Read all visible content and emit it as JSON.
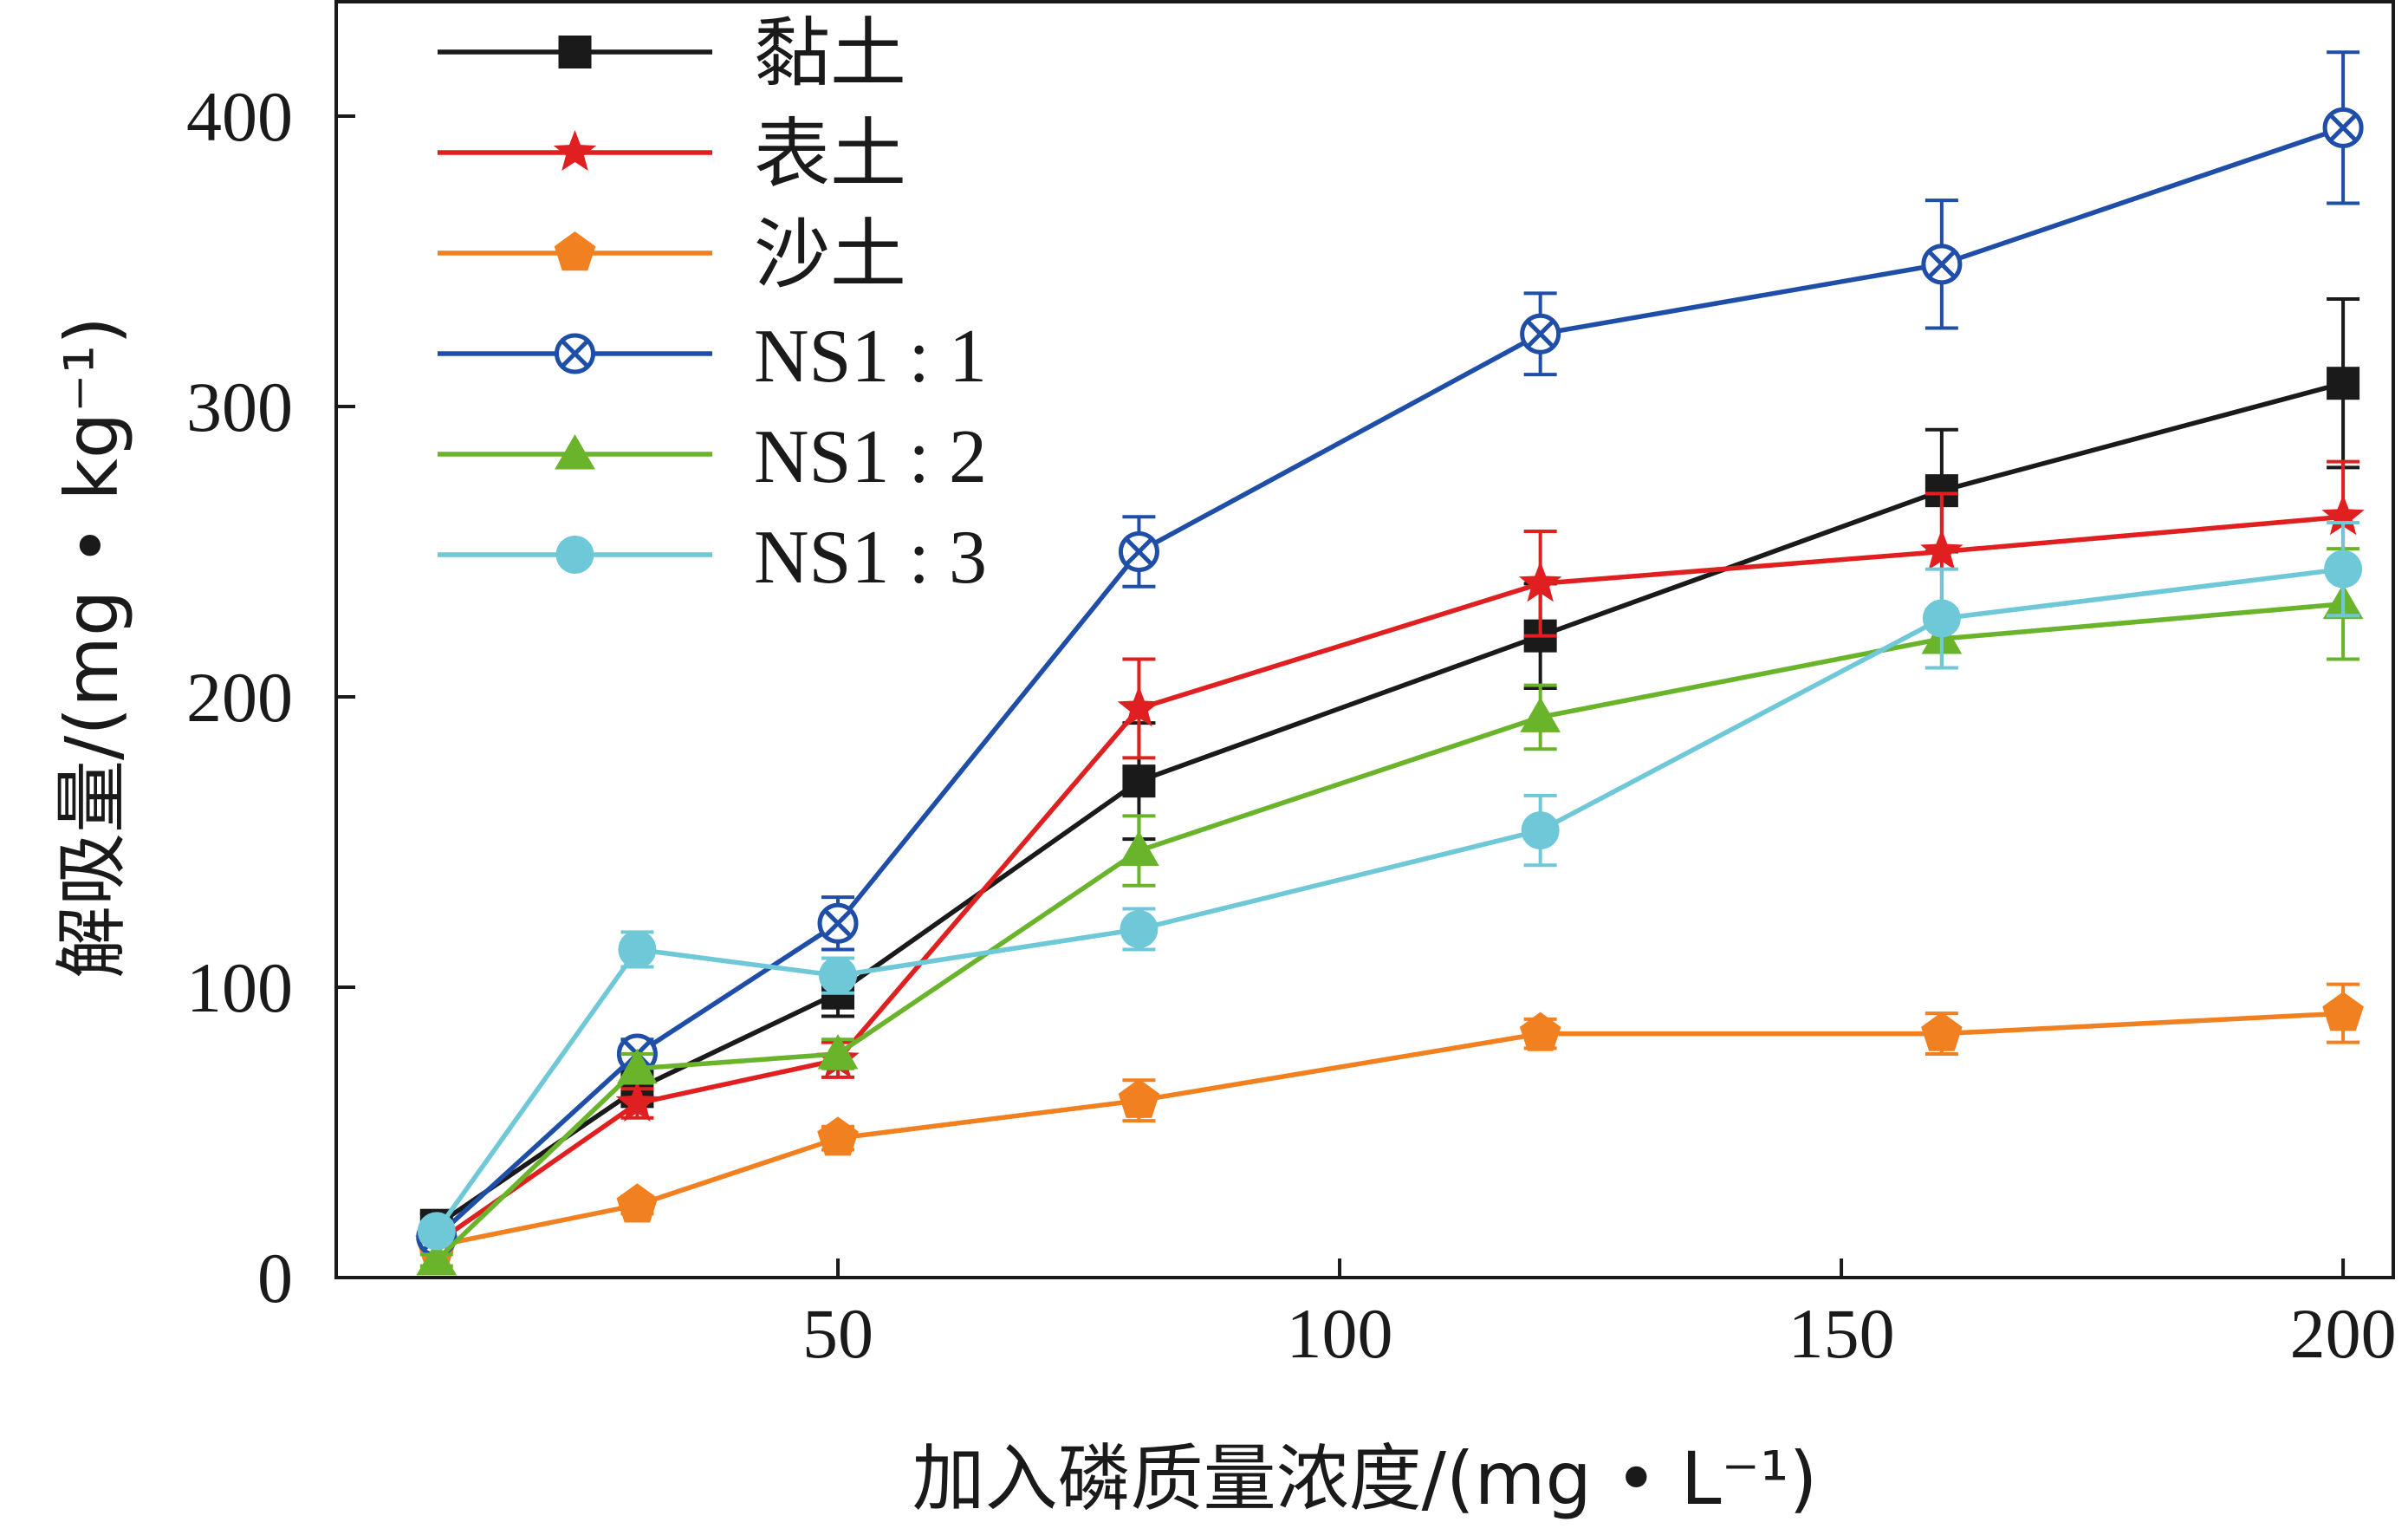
{
  "chart_data": {
    "type": "line",
    "xlabel": "加入磷质量浓度/(mg • L⁻¹)",
    "ylabel": "解吸量/(mg • kg⁻¹)",
    "xlim": [
      0,
      205
    ],
    "ylim": [
      0,
      440
    ],
    "xticks": [
      50,
      100,
      150,
      200
    ],
    "xtick_labels": [
      "50",
      "100",
      "150",
      "200"
    ],
    "yticks": [
      0,
      100,
      200,
      300,
      400
    ],
    "ytick_labels": [
      "0",
      "100",
      "200",
      "300",
      "400"
    ],
    "legend_position": "top-left",
    "grid": false,
    "x": [
      10,
      30,
      50,
      80,
      120,
      160,
      200
    ],
    "series": [
      {
        "name": "黏土",
        "color": "#1a1a1a",
        "marker": "square",
        "values": [
          18,
          65,
          98,
          171,
          221,
          271,
          308
        ],
        "errors": [
          4,
          6,
          8,
          20,
          18,
          21,
          29
        ]
      },
      {
        "name": "表土",
        "color": "#e02020",
        "marker": "star",
        "values": [
          12,
          60,
          75,
          196,
          239,
          250,
          262
        ],
        "errors": [
          3,
          5,
          6,
          17,
          18,
          20,
          19
        ]
      },
      {
        "name": "沙土",
        "color": "#f08020",
        "marker": "pentagon",
        "values": [
          11,
          25,
          48,
          61,
          84,
          84,
          91
        ],
        "errors": [
          2,
          3,
          4,
          7,
          5,
          7,
          10
        ]
      },
      {
        "name": "NS1 : 1",
        "color": "#1f4ea8",
        "marker": "circle-x",
        "values": [
          14,
          77,
          122,
          250,
          325,
          349,
          396
        ],
        "errors": [
          3,
          5,
          9,
          12,
          14,
          22,
          26
        ]
      },
      {
        "name": "NS1 : 2",
        "color": "#6ab42c",
        "marker": "triangle",
        "values": [
          6,
          72,
          77,
          147,
          193,
          220,
          232
        ],
        "errors": [
          2,
          5,
          5,
          12,
          11,
          10,
          19
        ]
      },
      {
        "name": "NS1 : 3",
        "color": "#6fc8d8",
        "marker": "circle",
        "values": [
          16,
          113,
          104,
          120,
          154,
          227,
          244
        ],
        "errors": [
          3,
          6,
          6,
          7,
          12,
          17,
          16
        ]
      }
    ]
  }
}
